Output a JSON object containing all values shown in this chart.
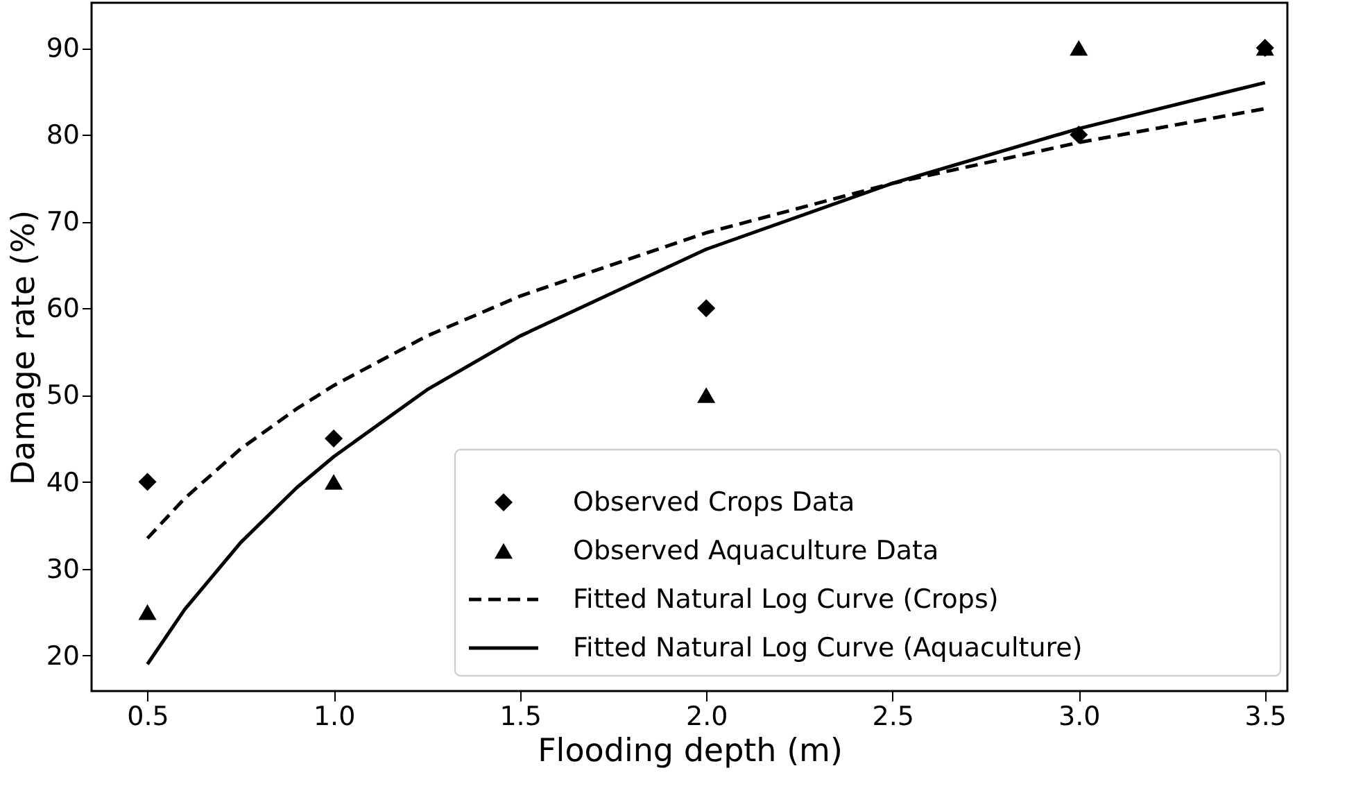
{
  "chart_data": {
    "type": "scatter",
    "xlabel": "Flooding depth (m)",
    "ylabel": "Damage rate (%)",
    "xlim": [
      0.35,
      3.56
    ],
    "ylim": [
      15.9,
      95.2
    ],
    "xticks": [
      0.5,
      {
        "value": 1,
        "label": "1.0"
      },
      1.5,
      {
        "value": 2,
        "label": "2.0"
      },
      2.5,
      {
        "value": 3,
        "label": "3.0"
      },
      3.5
    ],
    "yticks": [
      20,
      30,
      40,
      50,
      60,
      70,
      80,
      90
    ],
    "grid": false,
    "legend": "bottom right",
    "series": [
      {
        "name": "Observed Crops Data",
        "type": "scatter",
        "marker": "diamond",
        "color": "#000000",
        "x": [
          0.5,
          1.0,
          2.0,
          3.0,
          3.5
        ],
        "values": [
          40,
          45,
          60,
          80,
          90
        ]
      },
      {
        "name": "Observed Aquaculture Data",
        "type": "scatter",
        "marker": "triangle",
        "color": "#000000",
        "x": [
          0.5,
          1.0,
          2.0,
          3.0,
          3.5
        ],
        "values": [
          25,
          40,
          50,
          90,
          90
        ]
      },
      {
        "name": "Fitted Natural Log Curve (Crops)",
        "type": "line",
        "line_style": "dashed",
        "color": "#000000",
        "x": [
          0.5,
          0.6,
          0.75,
          0.9,
          1.0,
          1.25,
          1.5,
          2.0,
          2.5,
          3.0,
          3.5
        ],
        "values": [
          33.5,
          38.1,
          43.8,
          48.4,
          51.1,
          56.8,
          61.4,
          68.7,
          74.4,
          79.1,
          83.0
        ]
      },
      {
        "name": "Fitted Natural Log Curve (Aquaculture)",
        "type": "line",
        "line_style": "solid",
        "color": "#000000",
        "x": [
          0.5,
          0.6,
          0.75,
          0.9,
          1.0,
          1.25,
          1.5,
          2.0,
          2.5,
          3.0,
          3.5
        ],
        "values": [
          19.0,
          25.3,
          33.0,
          39.3,
          42.9,
          50.6,
          56.8,
          66.8,
          74.4,
          80.7,
          86.0
        ]
      }
    ]
  }
}
